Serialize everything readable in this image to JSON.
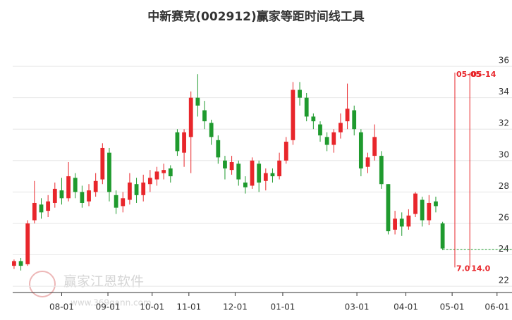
{
  "chart_data": {
    "type": "candlestick",
    "title": "中新赛克(002912)赢家等距时间线工具",
    "watermark": {
      "brand": "赢家江恩软件",
      "url": "www.369gann.com"
    },
    "up_color": "#e8262b",
    "down_color": "#1f9a2e",
    "open": [
      23.3,
      23.6,
      23.4,
      26.2,
      27.2,
      26.8,
      27.3,
      28.1,
      27.6,
      28.9,
      28.0,
      27.4,
      28.0,
      28.8,
      30.5,
      27.8,
      27.1,
      27.5,
      28.5,
      27.8,
      28.5,
      28.8,
      29.2,
      29.5,
      31.8,
      30.5,
      31.5,
      34.0,
      33.2,
      32.4,
      31.3,
      30.0,
      29.4,
      29.8,
      28.6,
      28.4,
      29.8,
      28.7,
      29.2,
      29.0,
      30.0,
      31.3,
      34.5,
      34.0,
      32.8,
      32.3,
      31.5,
      31.0,
      31.8,
      32.5,
      33.2,
      31.8,
      29.6,
      30.3,
      30.3,
      28.5,
      25.6,
      26.3,
      25.8,
      26.6,
      27.5,
      26.2,
      27.4,
      26.0
    ],
    "high": [
      23.7,
      23.8,
      26.2,
      28.7,
      27.6,
      27.8,
      28.6,
      28.9,
      29.9,
      29.2,
      28.4,
      28.5,
      29.2,
      31.1,
      30.8,
      28.1,
      28.0,
      29.2,
      28.9,
      29.1,
      29.4,
      29.6,
      29.8,
      29.7,
      32.0,
      32.0,
      34.4,
      35.5,
      33.8,
      32.6,
      31.6,
      30.3,
      30.3,
      30.0,
      29.0,
      30.2,
      30.0,
      29.5,
      29.5,
      30.5,
      31.5,
      35.0,
      35.0,
      34.3,
      33.0,
      32.5,
      31.8,
      32.0,
      33.0,
      34.9,
      33.5,
      32.0,
      30.5,
      32.3,
      30.6,
      28.5,
      26.8,
      26.7,
      26.9,
      28.0,
      27.7,
      27.8,
      27.7,
      26.1
    ],
    "low": [
      23.1,
      23.0,
      23.3,
      26.0,
      26.3,
      26.4,
      27.0,
      27.2,
      27.4,
      27.6,
      27.0,
      27.1,
      27.7,
      28.5,
      27.4,
      26.6,
      26.7,
      27.2,
      27.3,
      27.4,
      28.0,
      28.4,
      28.8,
      28.6,
      30.3,
      29.6,
      29.2,
      32.8,
      32.0,
      31.0,
      29.8,
      28.8,
      29.1,
      28.4,
      27.9,
      28.2,
      28.0,
      28.1,
      28.6,
      28.8,
      29.8,
      31.0,
      33.5,
      32.5,
      32.0,
      31.2,
      30.6,
      30.5,
      31.4,
      32.0,
      31.6,
      29.0,
      29.2,
      30.0,
      28.2,
      25.3,
      25.3,
      25.2,
      25.6,
      26.4,
      25.8,
      25.9,
      26.7,
      24.3
    ],
    "close": [
      23.6,
      23.3,
      26.0,
      27.3,
      26.7,
      27.4,
      28.2,
      27.6,
      29.0,
      28.0,
      27.3,
      28.1,
      28.7,
      30.8,
      28.0,
      27.0,
      27.6,
      28.6,
      27.8,
      28.6,
      28.9,
      29.3,
      29.4,
      29.0,
      30.6,
      31.8,
      34.0,
      33.5,
      32.5,
      31.5,
      30.2,
      29.5,
      29.9,
      28.8,
      28.3,
      30.0,
      28.6,
      29.2,
      29.0,
      30.0,
      31.2,
      34.5,
      34.0,
      32.8,
      32.5,
      31.6,
      31.0,
      31.8,
      32.4,
      33.3,
      32.0,
      29.5,
      30.2,
      31.5,
      28.5,
      25.5,
      26.3,
      25.8,
      26.5,
      27.9,
      26.2,
      27.3,
      27.1,
      24.4
    ],
    "xlim": [
      -0.2,
      73.2
    ],
    "xticks": [
      {
        "value": 7,
        "label": "08-01"
      },
      {
        "value": 13.8,
        "label": "09-01"
      },
      {
        "value": 20.3,
        "label": "10-01"
      },
      {
        "value": 25.7,
        "label": "11-01"
      },
      {
        "value": 32.5,
        "label": "12-01"
      },
      {
        "value": 39.5,
        "label": "01-01"
      },
      {
        "value": 50.4,
        "label": "03-01"
      },
      {
        "value": 57.6,
        "label": "04-01"
      },
      {
        "value": 64.4,
        "label": "05-01"
      },
      {
        "value": 71,
        "label": "06-01"
      }
    ],
    "ylim": [
      21.6,
      37.08
    ],
    "yticks": [
      22,
      24,
      26,
      28,
      30,
      32,
      34,
      36
    ],
    "grid": true,
    "hline": {
      "value": 24.35,
      "color": "#1f9a2e"
    },
    "vlines": {
      "color": "#e8262b",
      "top": 35.6,
      "bottom": 23.2,
      "x": [
        64.8,
        67.0
      ],
      "top_labels": [
        "05-05",
        "05-14"
      ],
      "bottom_labels": [
        "7.0",
        "14.0"
      ]
    }
  }
}
